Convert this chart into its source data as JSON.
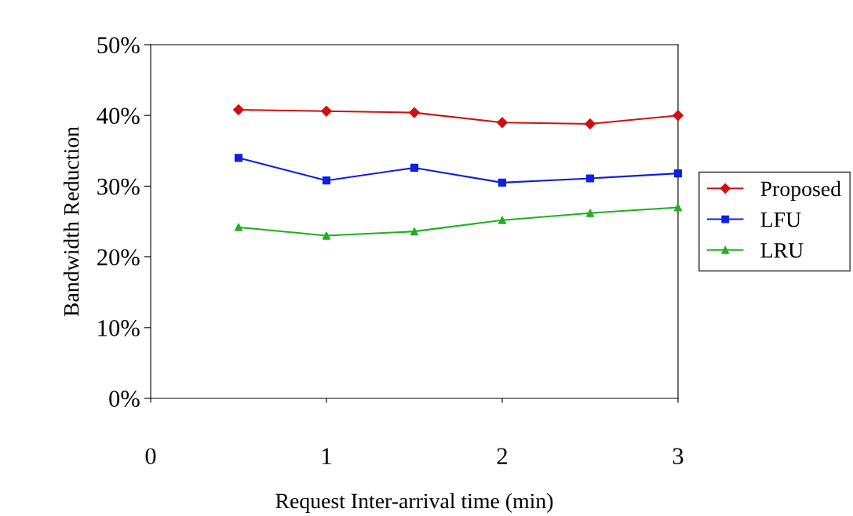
{
  "chart_data": {
    "type": "line",
    "xlabel": "Request Inter-arrival time (min)",
    "ylabel": "Bandwidth Reduction",
    "x": [
      0.5,
      1,
      1.5,
      2,
      2.5,
      3
    ],
    "series": [
      {
        "name": "Proposed",
        "color": "#d01010",
        "marker": "diamond",
        "values": [
          40.8,
          40.6,
          40.4,
          39.0,
          38.8,
          40.0
        ]
      },
      {
        "name": "LFU",
        "color": "#1020e0",
        "marker": "square",
        "values": [
          34.0,
          30.8,
          32.6,
          30.5,
          31.1,
          31.8
        ]
      },
      {
        "name": "LRU",
        "color": "#20b020",
        "marker": "triangle",
        "values": [
          24.2,
          23.0,
          23.6,
          25.2,
          26.2,
          27.0
        ]
      }
    ],
    "xlim": [
      0,
      3
    ],
    "xticks": [
      0,
      1,
      2,
      3
    ],
    "ylim": [
      0,
      50
    ],
    "yticks": [
      {
        "value": 0,
        "label": "0%"
      },
      {
        "value": 10,
        "label": "10%"
      },
      {
        "value": 20,
        "label": "20%"
      },
      {
        "value": 30,
        "label": "30%"
      },
      {
        "value": 40,
        "label": "40%"
      },
      {
        "value": 50,
        "label": "50%"
      }
    ],
    "grid": false,
    "legend": "right",
    "line_style": "solid"
  }
}
